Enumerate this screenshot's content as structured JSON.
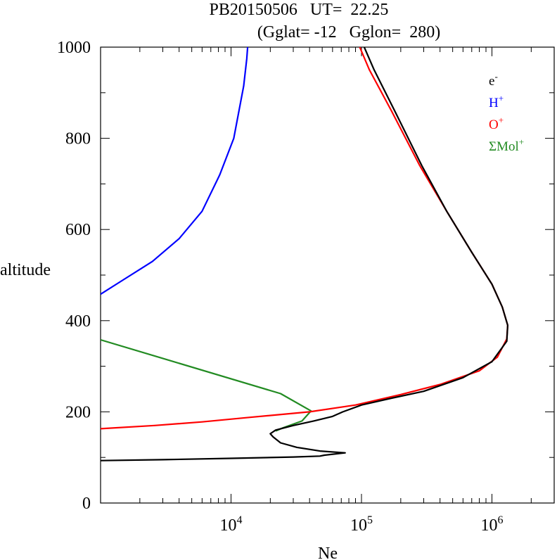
{
  "chart_data": {
    "type": "line",
    "title_line1": "PB20150506   UT=  22.25",
    "title_line2": "(Gglat= -12   Gglon=  280)",
    "xlabel": "Ne",
    "ylabel": "altitude",
    "x_scale": "log",
    "xlim": [
      1000,
      3000000
    ],
    "ylim": [
      0,
      1000
    ],
    "y_ticks": [
      0,
      200,
      400,
      600,
      800,
      1000
    ],
    "y_tick_labels": [
      "0",
      "200",
      "400",
      "600",
      "800",
      "1000"
    ],
    "x_ticks": [
      {
        "value": 10000,
        "base": "10",
        "exp": "4"
      },
      {
        "value": 100000,
        "base": "10",
        "exp": "5"
      },
      {
        "value": 1000000,
        "base": "10",
        "exp": "6"
      }
    ],
    "legend_position": "top-right",
    "legend": [
      {
        "base": "e",
        "sup": "-",
        "color": "#000000"
      },
      {
        "base": "H",
        "sup": "+",
        "color": "#0000ff"
      },
      {
        "base": "O",
        "sup": "+",
        "color": "#ff0000"
      },
      {
        "base": "ΣMol",
        "sup": "+",
        "color": "#228b22"
      }
    ],
    "series": [
      {
        "name": "H+",
        "color": "#0000ff",
        "points": [
          [
            1000,
            458
          ],
          [
            1500,
            490
          ],
          [
            2500,
            530
          ],
          [
            4000,
            580
          ],
          [
            6000,
            640
          ],
          [
            8200,
            720
          ],
          [
            10500,
            800
          ],
          [
            12500,
            915
          ],
          [
            13200,
            975
          ],
          [
            13400,
            1000
          ]
        ]
      },
      {
        "name": "SigmaMol+",
        "color": "#228b22",
        "points": [
          [
            1000,
            358
          ],
          [
            24000,
            240
          ],
          [
            41000,
            202
          ],
          [
            35000,
            180
          ],
          [
            25000,
            165
          ],
          [
            22000,
            158
          ]
        ]
      },
      {
        "name": "O+",
        "color": "#ff0000",
        "points": [
          [
            1000,
            163
          ],
          [
            2600,
            170
          ],
          [
            6000,
            178
          ],
          [
            14000,
            188
          ],
          [
            40000,
            200
          ],
          [
            90000,
            215
          ],
          [
            200000,
            238
          ],
          [
            400000,
            260
          ],
          [
            800000,
            290
          ],
          [
            1100000,
            320
          ],
          [
            1300000,
            360
          ],
          [
            1320000,
            390
          ],
          [
            1200000,
            430
          ],
          [
            1000000,
            480
          ],
          [
            700000,
            550
          ],
          [
            450000,
            640
          ],
          [
            280000,
            740
          ],
          [
            170000,
            860
          ],
          [
            115000,
            950
          ],
          [
            97000,
            1000
          ]
        ]
      },
      {
        "name": "e-",
        "color": "#000000",
        "points": [
          [
            1000,
            93
          ],
          [
            3000,
            95
          ],
          [
            10000,
            98
          ],
          [
            30000,
            101
          ],
          [
            48000,
            103
          ],
          [
            52000,
            105
          ],
          [
            75000,
            110
          ],
          [
            48000,
            114
          ],
          [
            32000,
            122
          ],
          [
            24000,
            132
          ],
          [
            21000,
            145
          ],
          [
            20000,
            152
          ],
          [
            22000,
            160
          ],
          [
            30000,
            170
          ],
          [
            43000,
            180
          ],
          [
            60000,
            190
          ],
          [
            72000,
            200
          ],
          [
            100000,
            215
          ],
          [
            170000,
            230
          ],
          [
            300000,
            245
          ],
          [
            600000,
            275
          ],
          [
            1000000,
            310
          ],
          [
            1300000,
            355
          ],
          [
            1320000,
            390
          ],
          [
            1200000,
            430
          ],
          [
            1000000,
            480
          ],
          [
            700000,
            550
          ],
          [
            450000,
            640
          ],
          [
            290000,
            740
          ],
          [
            180000,
            860
          ],
          [
            125000,
            950
          ],
          [
            105000,
            1000
          ]
        ]
      }
    ]
  }
}
